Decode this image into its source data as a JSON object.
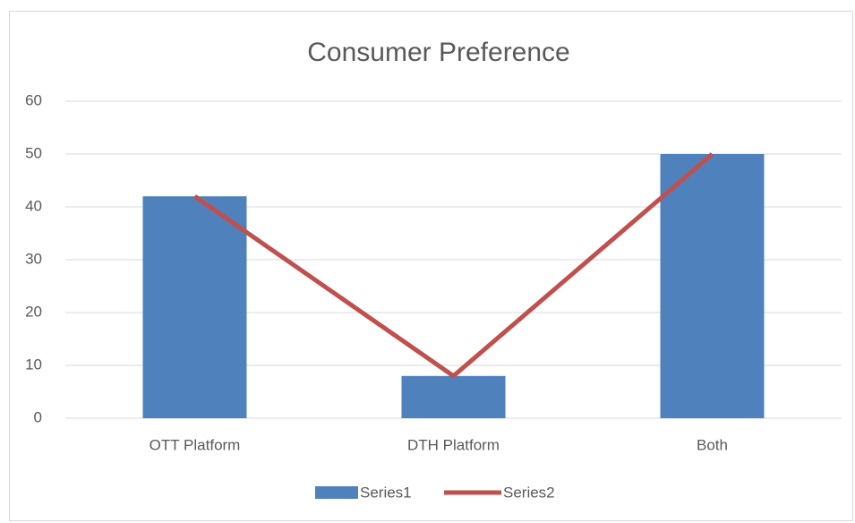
{
  "chart_data": {
    "type": "bar",
    "title": "Consumer Preference",
    "categories": [
      "OTT Platform",
      "DTH Platform",
      "Both"
    ],
    "series": [
      {
        "name": "Series1",
        "type": "bar",
        "color": "#4f81bd",
        "values": [
          42,
          8,
          50
        ]
      },
      {
        "name": "Series2",
        "type": "line",
        "color": "#c0504d",
        "values": [
          42,
          8,
          50
        ]
      }
    ],
    "ylim": [
      0,
      60
    ],
    "yticks": [
      0,
      10,
      20,
      30,
      40,
      50,
      60
    ],
    "grid": true,
    "legend": "bottom"
  }
}
